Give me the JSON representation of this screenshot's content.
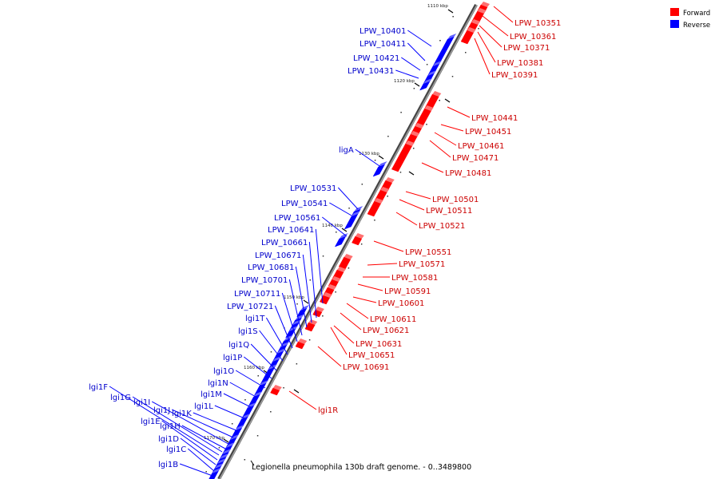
{
  "colors": {
    "forward": "#ff0000",
    "reverse": "#0000ff",
    "backbone": "#808080",
    "backbone_dark": "#444444"
  },
  "legend": {
    "forward": "Forward",
    "reverse": "Reverse"
  },
  "caption": "Legionella pneumophila 130b draft genome. - 0..3489800",
  "ticks": [
    "1110 kbp",
    "1120 kbp",
    "1130 kbp",
    "1140 kbp",
    "1150 kbp",
    "1160 kbp",
    "1170 kbp"
  ],
  "forward_labels": [
    "LPW_10351",
    "LPW_10361",
    "LPW_10371",
    "LPW_10381",
    "LPW_10391",
    "LPW_10441",
    "LPW_10451",
    "LPW_10461",
    "LPW_10471",
    "LPW_10481",
    "LPW_10501",
    "LPW_10511",
    "LPW_10521",
    "LPW_10551",
    "LPW_10571",
    "LPW_10581",
    "LPW_10591",
    "LPW_10601",
    "LPW_10611",
    "LPW_10621",
    "LPW_10631",
    "LPW_10651",
    "LPW_10691",
    "lgi1R"
  ],
  "reverse_labels": [
    "LPW_10401",
    "LPW_10411",
    "LPW_10421",
    "LPW_10431",
    "ligA",
    "LPW_10531",
    "LPW_10541",
    "LPW_10561",
    "LPW_10641",
    "LPW_10661",
    "LPW_10671",
    "LPW_10681",
    "LPW_10701",
    "LPW_10711",
    "LPW_10721",
    "lgi1T",
    "lgi1S",
    "lgi1Q",
    "lgi1P",
    "lgi1O",
    "lgi1N",
    "lgi1M",
    "lgi1L",
    "lgi1K",
    "lgi1J",
    "lgi1I",
    "lgi1H",
    "lgi1G",
    "lgi1F",
    "lgi1E",
    "lgi1D",
    "lgi1C",
    "lgi1B"
  ]
}
